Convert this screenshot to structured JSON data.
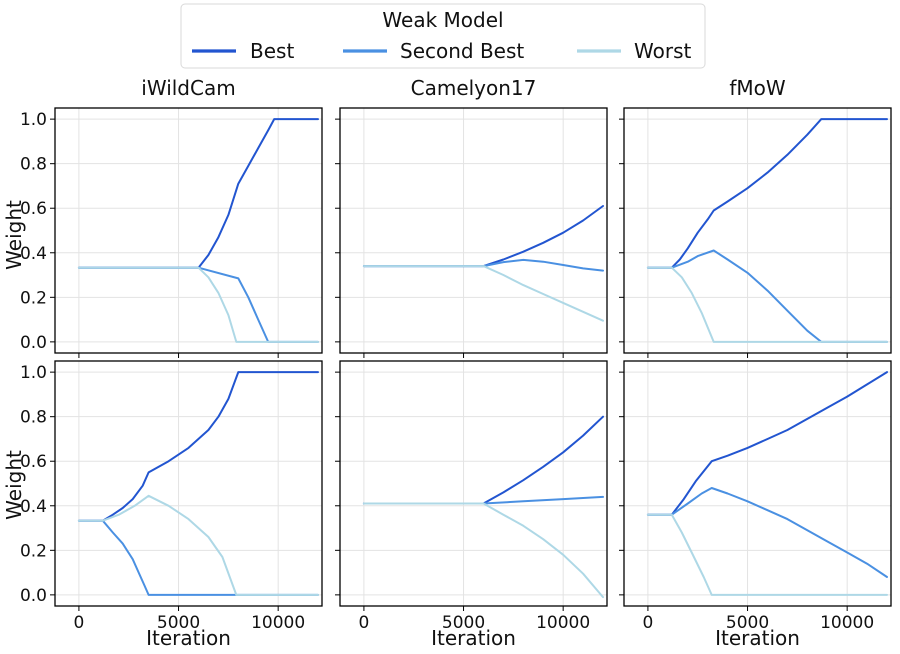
{
  "chart_data": {
    "type": "line",
    "legend": {
      "title": "Weak Model",
      "placement": "top-center",
      "entries": [
        {
          "name": "Best",
          "color": "#2255d0"
        },
        {
          "name": "Second Best",
          "color": "#4a90e2"
        },
        {
          "name": "Worst",
          "color": "#aed8e6"
        }
      ]
    },
    "columns": [
      "iWildCam",
      "Camelyon17",
      "fMoW"
    ],
    "xlabel": "Iteration",
    "ylabel": "Weight",
    "xlim": [
      -1200,
      12200
    ],
    "ylim": [
      -0.05,
      1.05
    ],
    "xticks": [
      0,
      5000,
      10000
    ],
    "xtick_labels": [
      "0",
      "5000",
      "10000"
    ],
    "yticks": [
      0.0,
      0.2,
      0.4,
      0.6,
      0.8,
      1.0
    ],
    "ytick_labels": [
      "0.0",
      "0.2",
      "0.4",
      "0.6",
      "0.8",
      "1.0"
    ],
    "grid": true,
    "panels": [
      {
        "row": 0,
        "col": 0,
        "title": "iWildCam",
        "series": [
          {
            "name": "Best",
            "x": [
              0,
              6000,
              6500,
              7000,
              7500,
              8000,
              8500,
              9000,
              9500,
              9800,
              12000
            ],
            "y": [
              0.333,
              0.333,
              0.39,
              0.47,
              0.57,
              0.71,
              0.79,
              0.87,
              0.95,
              1.0,
              1.0
            ]
          },
          {
            "name": "Second Best",
            "x": [
              0,
              6000,
              8000,
              8500,
              9000,
              9500,
              12000
            ],
            "y": [
              0.333,
              0.333,
              0.285,
              0.2,
              0.1,
              0.0,
              0.0
            ]
          },
          {
            "name": "Worst",
            "x": [
              0,
              6000,
              6500,
              7000,
              7500,
              7900,
              12000
            ],
            "y": [
              0.333,
              0.333,
              0.29,
              0.22,
              0.12,
              0.0,
              0.0
            ]
          }
        ]
      },
      {
        "row": 0,
        "col": 1,
        "title": "Camelyon17",
        "series": [
          {
            "name": "Best",
            "x": [
              0,
              6000,
              7000,
              8000,
              9000,
              10000,
              11000,
              12000
            ],
            "y": [
              0.34,
              0.34,
              0.37,
              0.405,
              0.445,
              0.49,
              0.545,
              0.61
            ]
          },
          {
            "name": "Second Best",
            "x": [
              0,
              6000,
              7000,
              8000,
              9000,
              10000,
              11000,
              12000
            ],
            "y": [
              0.34,
              0.34,
              0.358,
              0.368,
              0.36,
              0.345,
              0.33,
              0.32
            ]
          },
          {
            "name": "Worst",
            "x": [
              0,
              6000,
              7000,
              8000,
              9000,
              10000,
              11000,
              12000
            ],
            "y": [
              0.34,
              0.34,
              0.3,
              0.255,
              0.215,
              0.175,
              0.135,
              0.095
            ]
          }
        ]
      },
      {
        "row": 0,
        "col": 2,
        "title": "fMoW",
        "series": [
          {
            "name": "Best",
            "x": [
              0,
              1200,
              1600,
              2000,
              2500,
              3000,
              3300,
              4000,
              5000,
              6000,
              7000,
              8000,
              8700,
              12000
            ],
            "y": [
              0.333,
              0.333,
              0.37,
              0.42,
              0.49,
              0.55,
              0.59,
              0.63,
              0.69,
              0.76,
              0.84,
              0.93,
              1.0,
              1.0
            ]
          },
          {
            "name": "Second Best",
            "x": [
              0,
              1200,
              2000,
              2500,
              3300,
              4000,
              5000,
              6000,
              7000,
              8000,
              8700,
              12000
            ],
            "y": [
              0.333,
              0.333,
              0.36,
              0.385,
              0.41,
              0.37,
              0.31,
              0.23,
              0.14,
              0.05,
              0.0,
              0.0
            ]
          },
          {
            "name": "Worst",
            "x": [
              0,
              1200,
              1700,
              2200,
              2700,
              3300,
              12000
            ],
            "y": [
              0.333,
              0.333,
              0.29,
              0.22,
              0.13,
              0.0,
              0.0
            ]
          }
        ]
      },
      {
        "row": 1,
        "col": 0,
        "title": "iWildCam",
        "series": [
          {
            "name": "Best",
            "x": [
              0,
              1200,
              1700,
              2200,
              2700,
              3200,
              3500,
              4500,
              5500,
              6500,
              7000,
              7500,
              8000,
              12000
            ],
            "y": [
              0.333,
              0.333,
              0.36,
              0.39,
              0.43,
              0.49,
              0.55,
              0.6,
              0.66,
              0.74,
              0.8,
              0.88,
              1.0,
              1.0
            ]
          },
          {
            "name": "Second Best",
            "x": [
              0,
              1200,
              1700,
              2200,
              2700,
              3000,
              3300,
              3500,
              12000
            ],
            "y": [
              0.333,
              0.333,
              0.28,
              0.23,
              0.16,
              0.1,
              0.04,
              0.0,
              0.0
            ]
          },
          {
            "name": "Worst",
            "x": [
              0,
              1200,
              2000,
              2800,
              3500,
              4500,
              5500,
              6500,
              7200,
              7900,
              12000
            ],
            "y": [
              0.333,
              0.333,
              0.36,
              0.4,
              0.445,
              0.4,
              0.34,
              0.26,
              0.17,
              0.0,
              0.0
            ]
          }
        ]
      },
      {
        "row": 1,
        "col": 1,
        "title": "Camelyon17",
        "series": [
          {
            "name": "Best",
            "x": [
              0,
              6000,
              7000,
              8000,
              9000,
              10000,
              11000,
              12000
            ],
            "y": [
              0.41,
              0.41,
              0.46,
              0.515,
              0.575,
              0.64,
              0.715,
              0.8
            ]
          },
          {
            "name": "Second Best",
            "x": [
              0,
              6000,
              8000,
              10000,
              12000
            ],
            "y": [
              0.41,
              0.41,
              0.42,
              0.43,
              0.44
            ]
          },
          {
            "name": "Worst",
            "x": [
              0,
              6000,
              7000,
              8000,
              9000,
              10000,
              11000,
              12000
            ],
            "y": [
              0.41,
              0.41,
              0.36,
              0.31,
              0.25,
              0.18,
              0.095,
              -0.01
            ]
          }
        ]
      },
      {
        "row": 1,
        "col": 2,
        "title": "fMoW",
        "series": [
          {
            "name": "Best",
            "x": [
              0,
              1200,
              1800,
              2400,
              3200,
              4000,
              5000,
              6000,
              7000,
              8000,
              9000,
              10000,
              11000,
              12000
            ],
            "y": [
              0.36,
              0.36,
              0.43,
              0.51,
              0.6,
              0.625,
              0.66,
              0.7,
              0.74,
              0.79,
              0.84,
              0.89,
              0.945,
              1.0
            ]
          },
          {
            "name": "Second Best",
            "x": [
              0,
              1200,
              2000,
              2700,
              3200,
              4000,
              5000,
              6000,
              7000,
              8000,
              9000,
              10000,
              11000,
              12000
            ],
            "y": [
              0.36,
              0.36,
              0.41,
              0.455,
              0.48,
              0.455,
              0.42,
              0.38,
              0.34,
              0.29,
              0.24,
              0.19,
              0.14,
              0.08
            ]
          },
          {
            "name": "Worst",
            "x": [
              0,
              1200,
              1700,
              2200,
              2800,
              3100,
              3200,
              12000
            ],
            "y": [
              0.36,
              0.36,
              0.28,
              0.19,
              0.08,
              0.02,
              0.0,
              0.0
            ]
          }
        ]
      }
    ]
  }
}
